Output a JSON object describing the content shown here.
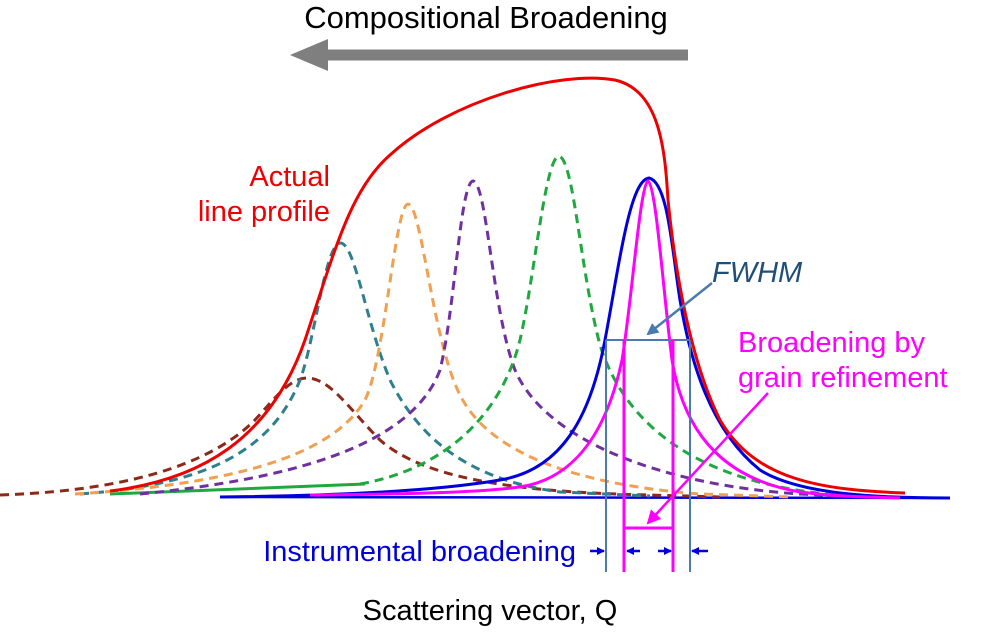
{
  "title": "Compositional Broadening",
  "x_axis_label": "Scattering vector, Q",
  "labels": {
    "actual_line1": "Actual",
    "actual_line2": "line profile",
    "fwhm": "FWHM",
    "grain_line1": "Broadening by",
    "grain_line2": "grain refinement",
    "instrumental": "Instrumental broadening"
  },
  "colors": {
    "actual_profile": "#ee0000",
    "instrumental_peak": "#0000dd",
    "grain_peak": "#ff00ff",
    "fwhm_lines": "#4a7ab0",
    "fwhm_text": "#1f4e79",
    "arrow_gray": "#7f7f7f",
    "peak_teal": "#2e7f8f",
    "peak_orange": "#f0a050",
    "peak_purple": "#7030a0",
    "peak_green": "#20a840",
    "peak_brown": "#8b2a1a"
  }
}
